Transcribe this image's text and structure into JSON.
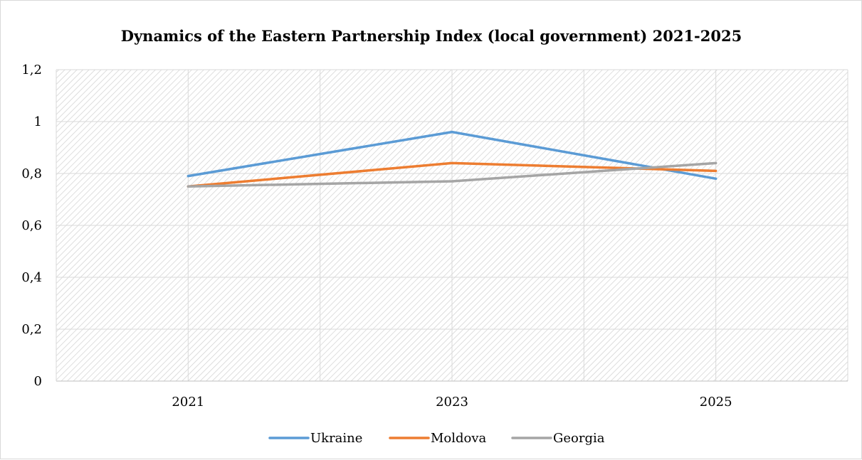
{
  "chart_data": {
    "type": "line",
    "title": "Dynamics of the Eastern Partnership Index (local government) 2021-2025",
    "xlabel": "",
    "ylabel": "",
    "categories": [
      "2021",
      "2023",
      "2025"
    ],
    "ylim": [
      0,
      1.2
    ],
    "yticks": [
      0,
      0.2,
      0.4,
      0.6,
      0.8,
      1,
      1.2
    ],
    "ytick_labels": [
      "0",
      "0,2",
      "0,4",
      "0,6",
      "0,8",
      "1",
      "1,2"
    ],
    "grid": true,
    "legend_position": "bottom",
    "series": [
      {
        "name": "Ukraine",
        "values": [
          0.79,
          0.96,
          0.78
        ],
        "color": "#5b9bd5"
      },
      {
        "name": "Moldova",
        "values": [
          0.75,
          0.84,
          0.81
        ],
        "color": "#ed7d31"
      },
      {
        "name": "Georgia",
        "values": [
          0.75,
          0.77,
          0.84
        ],
        "color": "#a5a5a5"
      }
    ]
  }
}
